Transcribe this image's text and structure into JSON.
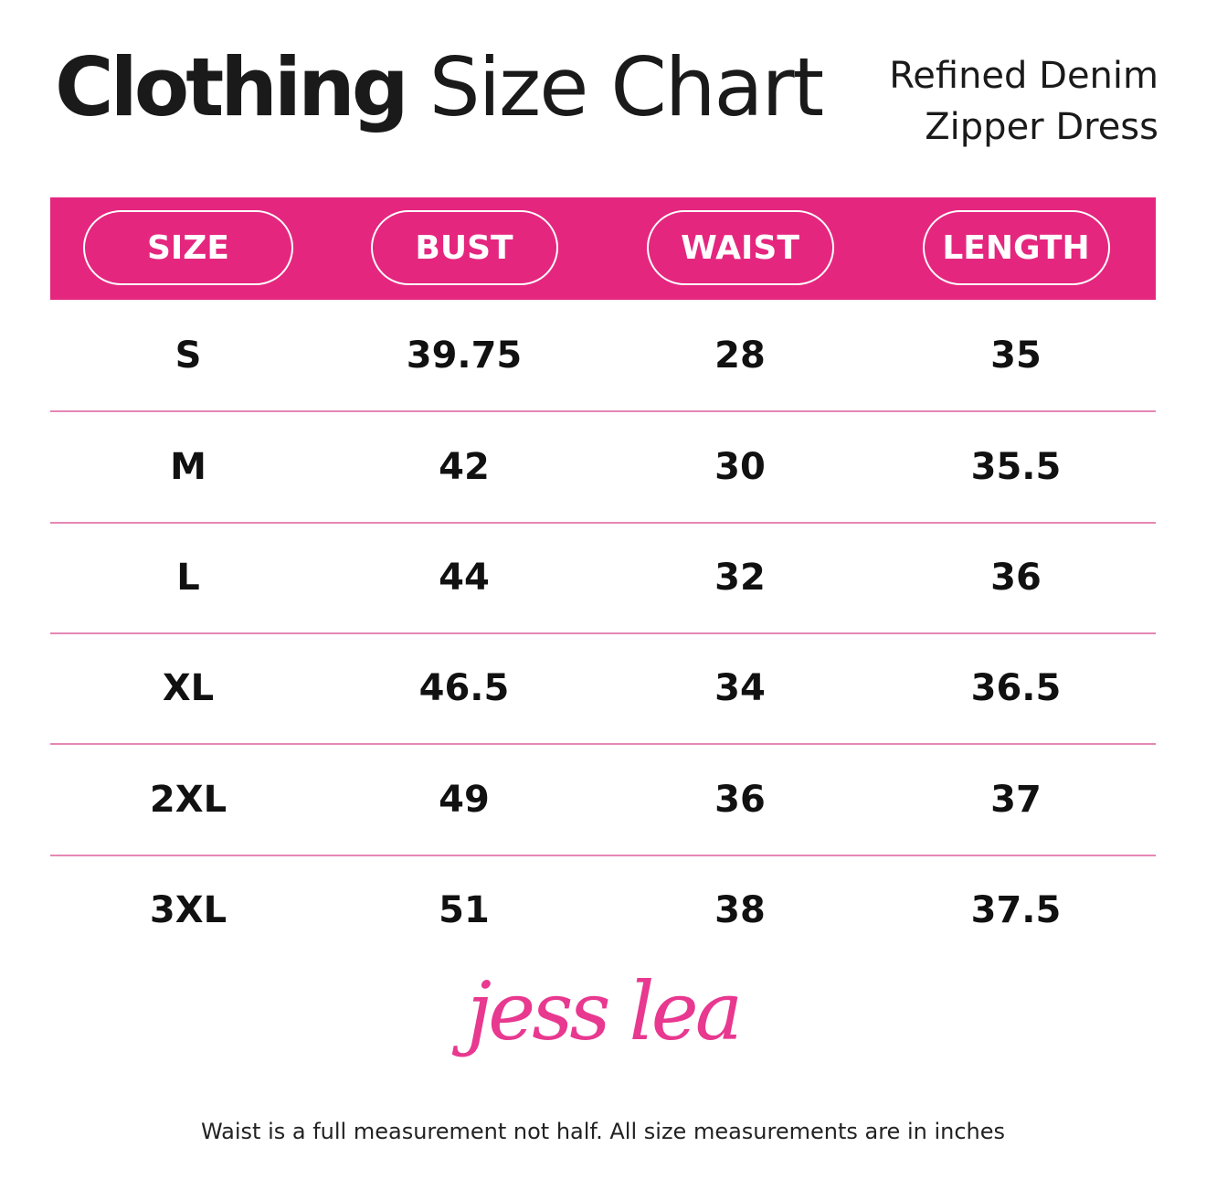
{
  "header": {
    "title_bold": "Clothing",
    "title_regular": "Size Chart",
    "subtitle": [
      "Refined Denim",
      "Zipper Dress"
    ]
  },
  "table": {
    "columns": [
      "SIZE",
      "BUST",
      "WAIST",
      "LENGTH"
    ],
    "rows": [
      [
        "S",
        "39.75",
        "28",
        "35"
      ],
      [
        "M",
        "42",
        "30",
        "35.5"
      ],
      [
        "L",
        "44",
        "32",
        "36"
      ],
      [
        "XL",
        "46.5",
        "34",
        "36.5"
      ],
      [
        "2XL",
        "49",
        "36",
        "37"
      ],
      [
        "3XL",
        "51",
        "38",
        "37.5"
      ]
    ]
  },
  "logo": "jess lea",
  "footer": "Waist is a full measurement not half. All size measurements are in inches"
}
